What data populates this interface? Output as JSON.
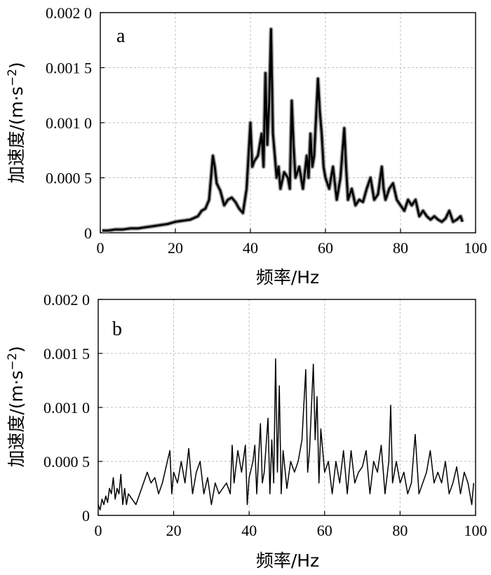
{
  "chart_data": [
    {
      "type": "line",
      "panel_label": "a",
      "xlabel": "频率/Hz",
      "ylabel_main": "加速度/(m·s",
      "ylabel_exp": "−2",
      "ylabel_close": ")",
      "xlim": [
        0,
        100
      ],
      "ylim": [
        0,
        0.002
      ],
      "xticks": [
        "0",
        "20",
        "40",
        "60",
        "80",
        "100"
      ],
      "yticks": [
        "0",
        "0.000 5",
        "0.001 0",
        "0.001 5",
        "0.002 0"
      ],
      "grid": true,
      "style": "dense",
      "series": [
        {
          "points": [
            [
              0.5,
              2e-05
            ],
            [
              2,
              2e-05
            ],
            [
              4,
              3e-05
            ],
            [
              6,
              3e-05
            ],
            [
              8,
              4e-05
            ],
            [
              10,
              4e-05
            ],
            [
              12,
              5e-05
            ],
            [
              14,
              6e-05
            ],
            [
              16,
              7e-05
            ],
            [
              18,
              8e-05
            ],
            [
              20,
              0.0001
            ],
            [
              22,
              0.00011
            ],
            [
              24,
              0.00012
            ],
            [
              26,
              0.00015
            ],
            [
              27,
              0.0002
            ],
            [
              28,
              0.00022
            ],
            [
              29,
              0.0003
            ],
            [
              30,
              0.0007
            ],
            [
              30.5,
              0.0006
            ],
            [
              31,
              0.00045
            ],
            [
              32,
              0.00038
            ],
            [
              33,
              0.00025
            ],
            [
              34,
              0.0003
            ],
            [
              35,
              0.00032
            ],
            [
              36,
              0.00028
            ],
            [
              37,
              0.00022
            ],
            [
              38,
              0.00018
            ],
            [
              39,
              0.0004
            ],
            [
              40,
              0.001
            ],
            [
              40.5,
              0.0006
            ],
            [
              41,
              0.00065
            ],
            [
              42,
              0.0007
            ],
            [
              43,
              0.0009
            ],
            [
              43.5,
              0.0006
            ],
            [
              44,
              0.00145
            ],
            [
              44.5,
              0.0008
            ],
            [
              45,
              0.0012
            ],
            [
              45.5,
              0.00185
            ],
            [
              46,
              0.0009
            ],
            [
              46.5,
              0.0007
            ],
            [
              47,
              0.0005
            ],
            [
              47.5,
              0.0006
            ],
            [
              48,
              0.0004
            ],
            [
              49,
              0.00055
            ],
            [
              50,
              0.0005
            ],
            [
              50.5,
              0.0004
            ],
            [
              51,
              0.0012
            ],
            [
              51.5,
              0.0008
            ],
            [
              52,
              0.0005
            ],
            [
              53,
              0.0006
            ],
            [
              54,
              0.0004
            ],
            [
              55,
              0.0007
            ],
            [
              55.5,
              0.0005
            ],
            [
              56,
              0.0009
            ],
            [
              56.5,
              0.0006
            ],
            [
              57,
              0.0007
            ],
            [
              58,
              0.0014
            ],
            [
              58.5,
              0.0011
            ],
            [
              59,
              0.0009
            ],
            [
              59.5,
              0.0006
            ],
            [
              60,
              0.0005
            ],
            [
              61,
              0.0004
            ],
            [
              62,
              0.0006
            ],
            [
              63,
              0.0003
            ],
            [
              64,
              0.0005
            ],
            [
              65,
              0.00095
            ],
            [
              65.5,
              0.0006
            ],
            [
              66,
              0.0003
            ],
            [
              67,
              0.0004
            ],
            [
              68,
              0.00025
            ],
            [
              69,
              0.0003
            ],
            [
              70,
              0.00028
            ],
            [
              71,
              0.0004
            ],
            [
              72,
              0.0005
            ],
            [
              73,
              0.0003
            ],
            [
              74,
              0.00035
            ],
            [
              75,
              0.0006
            ],
            [
              75.5,
              0.0004
            ],
            [
              76,
              0.0003
            ],
            [
              77,
              0.0004
            ],
            [
              78,
              0.00045
            ],
            [
              79,
              0.0003
            ],
            [
              80,
              0.00025
            ],
            [
              81,
              0.0002
            ],
            [
              82,
              0.0003
            ],
            [
              83,
              0.00025
            ],
            [
              84,
              0.0003
            ],
            [
              85,
              0.00015
            ],
            [
              86,
              0.0002
            ],
            [
              87,
              0.00015
            ],
            [
              88,
              0.00012
            ],
            [
              89,
              0.00015
            ],
            [
              90,
              0.00012
            ],
            [
              91,
              0.0001
            ],
            [
              92,
              0.00013
            ],
            [
              93,
              0.0002
            ],
            [
              94,
              0.0001
            ],
            [
              95,
              0.00012
            ],
            [
              96,
              0.00015
            ],
            [
              96.5,
              0.0001
            ]
          ]
        }
      ]
    },
    {
      "type": "line",
      "panel_label": "b",
      "xlabel": "频率/Hz",
      "ylabel_main": "加速度/(m·s",
      "ylabel_exp": "−2",
      "ylabel_close": ")",
      "xlim": [
        0,
        100
      ],
      "ylim": [
        0,
        0.002
      ],
      "xticks": [
        "0",
        "20",
        "40",
        "60",
        "80",
        "100"
      ],
      "yticks": [
        "0",
        "0.000 5",
        "0.001 0",
        "0.001 5",
        "0.002 0"
      ],
      "grid": true,
      "style": "thin",
      "series": [
        {
          "points": [
            [
              0,
              0.0001
            ],
            [
              0.5,
              5e-05
            ],
            [
              1,
              0.00015
            ],
            [
              1.5,
              0.0001
            ],
            [
              2,
              0.00018
            ],
            [
              2.5,
              0.00012
            ],
            [
              3,
              0.00025
            ],
            [
              3.5,
              0.0002
            ],
            [
              4,
              0.00035
            ],
            [
              4.5,
              0.00015
            ],
            [
              5,
              0.00025
            ],
            [
              5.5,
              0.0002
            ],
            [
              6,
              0.00038
            ],
            [
              6.5,
              0.0001
            ],
            [
              7,
              0.00025
            ],
            [
              7.5,
              0.0001
            ],
            [
              8,
              0.0002
            ],
            [
              9,
              0.00015
            ],
            [
              10,
              0.0001
            ],
            [
              11,
              0.0002
            ],
            [
              12,
              0.0003
            ],
            [
              13,
              0.0004
            ],
            [
              14,
              0.0003
            ],
            [
              15,
              0.00035
            ],
            [
              16,
              0.0002
            ],
            [
              17,
              0.0003
            ],
            [
              18,
              0.00045
            ],
            [
              19,
              0.0006
            ],
            [
              19.5,
              0.0002
            ],
            [
              20,
              0.0004
            ],
            [
              21,
              0.0003
            ],
            [
              22,
              0.0005
            ],
            [
              23,
              0.0003
            ],
            [
              24,
              0.00062
            ],
            [
              25,
              0.0002
            ],
            [
              26,
              0.0004
            ],
            [
              27,
              0.0005
            ],
            [
              28,
              0.0002
            ],
            [
              29,
              0.00035
            ],
            [
              30,
              0.0001
            ],
            [
              31,
              0.0003
            ],
            [
              32,
              0.0002
            ],
            [
              33,
              0.00025
            ],
            [
              34,
              0.0003
            ],
            [
              35,
              0.0002
            ],
            [
              35.5,
              0.00065
            ],
            [
              36,
              0.0003
            ],
            [
              37,
              0.0006
            ],
            [
              38,
              0.0004
            ],
            [
              39,
              0.00065
            ],
            [
              39.5,
              0.0001
            ],
            [
              40,
              0.00035
            ],
            [
              41,
              0.0005
            ],
            [
              41.5,
              0.00065
            ],
            [
              42,
              0.0002
            ],
            [
              43,
              0.00085
            ],
            [
              43.5,
              0.0003
            ],
            [
              44,
              0.0004
            ],
            [
              45,
              0.0009
            ],
            [
              45.5,
              0.0002
            ],
            [
              46,
              0.0007
            ],
            [
              46.5,
              0.0003
            ],
            [
              47,
              0.00145
            ],
            [
              47.5,
              0.0004
            ],
            [
              48,
              0.0012
            ],
            [
              48.5,
              0.0002
            ],
            [
              49,
              0.0006
            ],
            [
              50,
              0.00025
            ],
            [
              51,
              0.0005
            ],
            [
              52,
              0.0004
            ],
            [
              53,
              0.0005
            ],
            [
              54,
              0.0007
            ],
            [
              55,
              0.00135
            ],
            [
              55.5,
              0.0004
            ],
            [
              56,
              0.0006
            ],
            [
              57,
              0.0014
            ],
            [
              57.5,
              0.0007
            ],
            [
              58,
              0.0011
            ],
            [
              58.5,
              0.0003
            ],
            [
              59,
              0.0008
            ],
            [
              60,
              0.0004
            ],
            [
              61,
              0.0005
            ],
            [
              62,
              0.0002
            ],
            [
              63,
              0.0005
            ],
            [
              64,
              0.0003
            ],
            [
              65,
              0.0006
            ],
            [
              66,
              0.0002
            ],
            [
              67,
              0.0006
            ],
            [
              68,
              0.0003
            ],
            [
              69,
              0.0004
            ],
            [
              70,
              0.00045
            ],
            [
              71,
              0.0006
            ],
            [
              72,
              0.0002
            ],
            [
              73,
              0.0005
            ],
            [
              74,
              0.0004
            ],
            [
              75,
              0.00065
            ],
            [
              76,
              0.0002
            ],
            [
              77,
              0.0005
            ],
            [
              77.5,
              0.00102
            ],
            [
              78,
              0.0003
            ],
            [
              79,
              0.0005
            ],
            [
              80,
              0.0003
            ],
            [
              81,
              0.0004
            ],
            [
              82,
              0.0002
            ],
            [
              83,
              0.0003
            ],
            [
              84,
              0.00075
            ],
            [
              85,
              0.0002
            ],
            [
              86,
              0.0003
            ],
            [
              87,
              0.0004
            ],
            [
              88,
              0.0006
            ],
            [
              89,
              0.0003
            ],
            [
              90,
              0.0004
            ],
            [
              91,
              0.0003
            ],
            [
              92,
              0.0005
            ],
            [
              93,
              0.0002
            ],
            [
              94,
              0.0003
            ],
            [
              95,
              0.00045
            ],
            [
              96,
              0.0002
            ],
            [
              97,
              0.0004
            ],
            [
              98,
              0.0003
            ],
            [
              99,
              0.0001
            ],
            [
              99.5,
              0.0003
            ]
          ]
        }
      ]
    }
  ]
}
